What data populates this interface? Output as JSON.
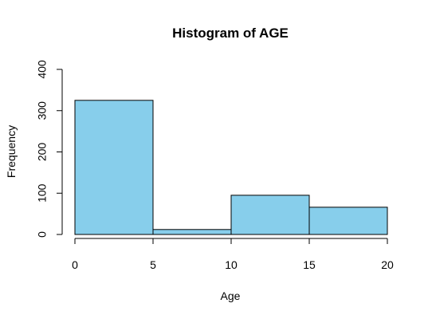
{
  "chart_data": {
    "type": "bar",
    "title": "Histogram of AGE",
    "xlabel": "Age",
    "ylabel": "Frequency",
    "bins": [
      {
        "from": 0,
        "to": 5,
        "count": 325
      },
      {
        "from": 5,
        "to": 10,
        "count": 12
      },
      {
        "from": 10,
        "to": 15,
        "count": 95
      },
      {
        "from": 15,
        "to": 20,
        "count": 66
      }
    ],
    "xlim": [
      0,
      20
    ],
    "ylim": [
      0,
      400
    ],
    "xticks": [
      0,
      5,
      10,
      15,
      20
    ],
    "yticks": [
      0,
      100,
      200,
      300,
      400
    ],
    "bar_color": "#87CEEB",
    "grid": false,
    "legend": "none"
  }
}
